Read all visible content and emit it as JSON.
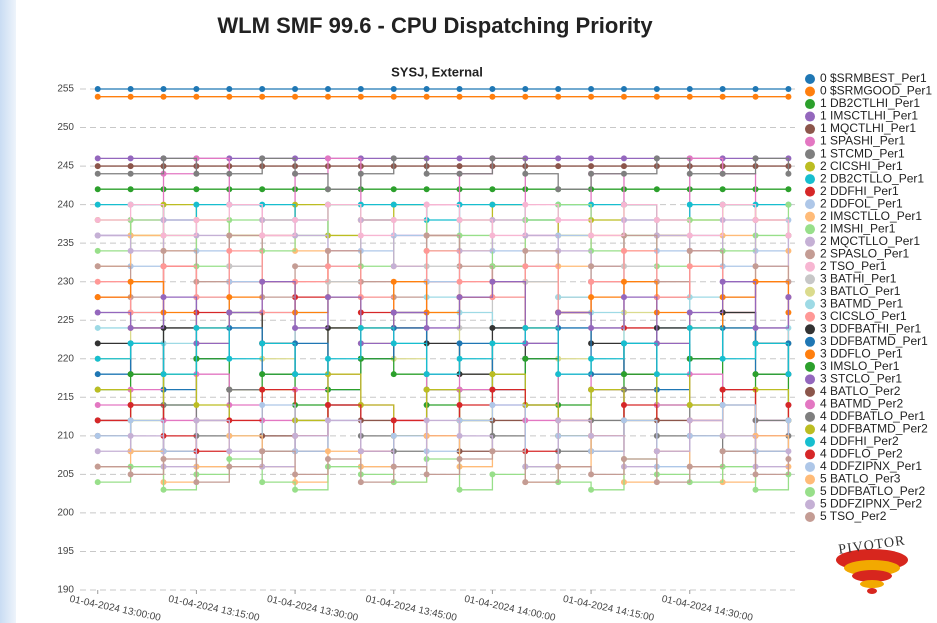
{
  "chart_data": {
    "type": "line",
    "step": true,
    "markers": true,
    "grid": true,
    "legend": "right",
    "title": "WLM SMF 99.6 - CPU Dispatching Priority",
    "subtitle": "SYSJ, External",
    "logo": "PIVOTOR",
    "x": [
      "01-04-2024 13:00:00",
      "01-04-2024 13:05:00",
      "01-04-2024 13:10:00",
      "01-04-2024 13:15:00",
      "01-04-2024 13:20:00",
      "01-04-2024 13:25:00",
      "01-04-2024 13:30:00",
      "01-04-2024 13:35:00",
      "01-04-2024 13:40:00",
      "01-04-2024 13:45:00",
      "01-04-2024 13:50:00",
      "01-04-2024 13:55:00",
      "01-04-2024 14:00:00",
      "01-04-2024 14:05:00",
      "01-04-2024 14:10:00",
      "01-04-2024 14:15:00",
      "01-04-2024 14:20:00",
      "01-04-2024 14:25:00",
      "01-04-2024 14:30:00",
      "01-04-2024 14:35:00",
      "01-04-2024 14:40:00",
      "01-04-2024 14:45:00"
    ],
    "xlim": [
      "01-04-2024 12:57:00",
      "01-04-2024 14:46:00"
    ],
    "xticks": [
      "01-04-2024 13:00:00",
      "01-04-2024 13:15:00",
      "01-04-2024 13:30:00",
      "01-04-2024 13:45:00",
      "01-04-2024 14:00:00",
      "01-04-2024 14:15:00",
      "01-04-2024 14:30:00"
    ],
    "ylim": [
      190,
      255
    ],
    "yticks": [
      190,
      195,
      200,
      205,
      210,
      215,
      220,
      225,
      230,
      235,
      240,
      245,
      250,
      255
    ],
    "series": [
      {
        "name": "0 $SRMBEST_Per1",
        "color": "#1f77b4",
        "values": [
          255,
          255,
          255,
          255,
          255,
          255,
          255,
          255,
          255,
          255,
          255,
          255,
          255,
          255,
          255,
          255,
          255,
          255,
          255,
          255,
          255,
          255
        ]
      },
      {
        "name": "0 $SRMGOOD_Per1",
        "color": "#ff7f0e",
        "values": [
          254,
          254,
          254,
          254,
          254,
          254,
          254,
          254,
          254,
          254,
          254,
          254,
          254,
          254,
          254,
          254,
          254,
          254,
          254,
          254,
          254,
          254
        ]
      },
      {
        "name": "1 DB2CTLHI_Per1",
        "color": "#2ca02c",
        "values": [
          242,
          242,
          242,
          242,
          242,
          242,
          242,
          242,
          242,
          242,
          242,
          242,
          242,
          242,
          242,
          242,
          242,
          242,
          242,
          242,
          242,
          242
        ]
      },
      {
        "name": "1 IMSCTLHI_Per1",
        "color": "#9467bd",
        "values": [
          246,
          246,
          246,
          246,
          246,
          246,
          246,
          246,
          246,
          246,
          246,
          246,
          246,
          246,
          246,
          246,
          246,
          246,
          246,
          246,
          246,
          246
        ]
      },
      {
        "name": "1 MQCTLHI_Per1",
        "color": "#8c564b",
        "values": [
          245,
          245,
          245,
          245,
          245,
          245,
          245,
          245,
          245,
          245,
          245,
          245,
          245,
          245,
          245,
          245,
          245,
          245,
          245,
          245,
          245,
          245
        ]
      },
      {
        "name": "1 SPASHI_Per1",
        "color": "#e377c2",
        "values": [
          236,
          238,
          244,
          246,
          240,
          236,
          244,
          246,
          238,
          236,
          240,
          244,
          246,
          236,
          238,
          244,
          240,
          236,
          246,
          244,
          238,
          236
        ]
      },
      {
        "name": "1 STCMD_Per1",
        "color": "#7f7f7f",
        "values": [
          244,
          244,
          246,
          244,
          244,
          246,
          244,
          242,
          244,
          246,
          244,
          244,
          246,
          244,
          242,
          244,
          244,
          246,
          244,
          244,
          246,
          244
        ]
      },
      {
        "name": "2 CICSHI_Per1",
        "color": "#bcbd22",
        "values": [
          238,
          236,
          240,
          238,
          236,
          238,
          240,
          236,
          238,
          240,
          236,
          238,
          240,
          238,
          236,
          238,
          240,
          236,
          238,
          240,
          238,
          236
        ]
      },
      {
        "name": "2 DB2CTLLO_Per1",
        "color": "#17becf",
        "values": [
          240,
          240,
          238,
          240,
          240,
          240,
          238,
          240,
          240,
          240,
          238,
          240,
          240,
          238,
          240,
          240,
          240,
          238,
          240,
          240,
          240,
          240
        ]
      },
      {
        "name": "2 DDFHI_Per1",
        "color": "#d62728",
        "values": [
          228,
          224,
          232,
          226,
          230,
          222,
          228,
          234,
          226,
          224,
          230,
          228,
          232,
          222,
          226,
          230,
          224,
          228,
          234,
          226,
          222,
          228
        ]
      },
      {
        "name": "2 DDFOL_Per1",
        "color": "#aec7e8",
        "values": [
          236,
          232,
          238,
          234,
          230,
          236,
          238,
          232,
          234,
          236,
          230,
          238,
          234,
          232,
          236,
          230,
          238,
          234,
          236,
          232,
          234,
          238
        ]
      },
      {
        "name": "2 IMSCTLLO_Per1",
        "color": "#ffbb78",
        "values": [
          232,
          236,
          234,
          238,
          232,
          236,
          234,
          230,
          238,
          232,
          236,
          234,
          238,
          230,
          232,
          236,
          234,
          238,
          232,
          236,
          230,
          234
        ]
      },
      {
        "name": "2 IMSHI_Per1",
        "color": "#98df8a",
        "values": [
          234,
          238,
          236,
          232,
          238,
          234,
          236,
          240,
          232,
          238,
          234,
          236,
          232,
          238,
          240,
          234,
          236,
          232,
          238,
          234,
          236,
          240
        ]
      },
      {
        "name": "2 MQCTLLO_Per1",
        "color": "#c5b0d5",
        "values": [
          236,
          234,
          238,
          236,
          232,
          238,
          236,
          234,
          238,
          232,
          236,
          234,
          238,
          236,
          234,
          232,
          238,
          236,
          234,
          238,
          232,
          236
        ]
      },
      {
        "name": "2 SPASLO_Per1",
        "color": "#c49c94",
        "values": [
          232,
          228,
          234,
          230,
          236,
          228,
          232,
          234,
          230,
          228,
          236,
          232,
          230,
          234,
          228,
          232,
          236,
          230,
          234,
          228,
          232,
          230
        ]
      },
      {
        "name": "2 TSO_Per1",
        "color": "#f7b6d2",
        "values": [
          238,
          240,
          236,
          238,
          240,
          236,
          238,
          240,
          236,
          238,
          240,
          238,
          236,
          240,
          238,
          236,
          240,
          238,
          236,
          240,
          238,
          236
        ]
      },
      {
        "name": "3 BATHI_Per1",
        "color": "#c7c7c7",
        "values": [
          226,
          230,
          224,
          228,
          232,
          226,
          224,
          230,
          228,
          226,
          232,
          224,
          228,
          230,
          226,
          224,
          232,
          228,
          226,
          230,
          224,
          228
        ]
      },
      {
        "name": "3 BATLO_Per1",
        "color": "#dbdb8d",
        "values": [
          220,
          224,
          218,
          222,
          226,
          220,
          218,
          224,
          222,
          220,
          226,
          218,
          222,
          224,
          220,
          218,
          226,
          222,
          220,
          224,
          218,
          222
        ]
      },
      {
        "name": "3 BATMD_Per1",
        "color": "#9edae5",
        "values": [
          224,
          226,
          222,
          228,
          224,
          222,
          226,
          228,
          224,
          222,
          228,
          226,
          224,
          222,
          228,
          226,
          222,
          224,
          228,
          226,
          222,
          224
        ]
      },
      {
        "name": "3 CICSLO_Per1",
        "color": "#ff9896",
        "values": [
          230,
          226,
          232,
          228,
          234,
          226,
          230,
          232,
          228,
          226,
          234,
          230,
          228,
          232,
          226,
          230,
          234,
          228,
          232,
          226,
          230,
          228
        ]
      },
      {
        "name": "3 DDFBATHI_Per1",
        "color": "#333333",
        "values": [
          222,
          218,
          224,
          220,
          226,
          222,
          218,
          224,
          220,
          226,
          222,
          218,
          224,
          220,
          226,
          222,
          218,
          224,
          220,
          226,
          222,
          218
        ]
      },
      {
        "name": "3 DDFBATMD_Per1",
        "color": "#1f77b4",
        "values": [
          218,
          222,
          216,
          220,
          224,
          218,
          222,
          216,
          220,
          224,
          218,
          222,
          216,
          220,
          224,
          218,
          222,
          216,
          220,
          224,
          218,
          222
        ]
      },
      {
        "name": "3 DDFLO_Per1",
        "color": "#ff7f0e",
        "values": [
          228,
          230,
          226,
          224,
          228,
          230,
          226,
          228,
          224,
          230,
          226,
          228,
          230,
          224,
          226,
          228,
          230,
          226,
          224,
          228,
          230,
          226
        ]
      },
      {
        "name": "3 IMSLO_Per1",
        "color": "#2ca02c",
        "values": [
          216,
          218,
          214,
          220,
          216,
          218,
          214,
          216,
          220,
          218,
          214,
          216,
          218,
          220,
          214,
          216,
          218,
          214,
          220,
          216,
          218,
          214
        ]
      },
      {
        "name": "3 STCLO_Per1",
        "color": "#9467bd",
        "values": [
          226,
          224,
          228,
          222,
          226,
          230,
          224,
          228,
          222,
          226,
          224,
          228,
          230,
          222,
          226,
          224,
          228,
          222,
          226,
          230,
          224,
          228
        ]
      },
      {
        "name": "4 BATLO_Per2",
        "color": "#8c564b",
        "values": [
          210,
          214,
          208,
          212,
          216,
          210,
          208,
          214,
          212,
          210,
          216,
          208,
          212,
          214,
          210,
          208,
          216,
          212,
          210,
          214,
          208,
          212
        ]
      },
      {
        "name": "4 BATMD_Per2",
        "color": "#e377c2",
        "values": [
          214,
          216,
          212,
          218,
          214,
          212,
          216,
          218,
          214,
          212,
          218,
          216,
          214,
          212,
          218,
          216,
          212,
          214,
          218,
          216,
          212,
          214
        ]
      },
      {
        "name": "4 DDFBATLO_Per1",
        "color": "#7f7f7f",
        "values": [
          212,
          208,
          214,
          210,
          216,
          208,
          212,
          214,
          210,
          208,
          216,
          212,
          210,
          214,
          208,
          212,
          216,
          210,
          214,
          208,
          212,
          210
        ]
      },
      {
        "name": "4 DDFBATMD_Per2",
        "color": "#bcbd22",
        "values": [
          216,
          212,
          218,
          214,
          210,
          216,
          212,
          218,
          214,
          210,
          216,
          212,
          218,
          214,
          210,
          216,
          212,
          218,
          214,
          210,
          216,
          212
        ]
      },
      {
        "name": "4 DDFHI_Per2",
        "color": "#17becf",
        "values": [
          220,
          222,
          218,
          224,
          220,
          222,
          218,
          220,
          224,
          222,
          218,
          220,
          222,
          224,
          218,
          220,
          222,
          218,
          224,
          220,
          222,
          218
        ]
      },
      {
        "name": "4 DDFLO_Per2",
        "color": "#d62728",
        "values": [
          212,
          214,
          210,
          208,
          212,
          216,
          210,
          214,
          208,
          212,
          210,
          214,
          216,
          208,
          212,
          210,
          214,
          208,
          212,
          216,
          210,
          214
        ]
      },
      {
        "name": "4 DDFZIPNX_Per1",
        "color": "#aec7e8",
        "values": [
          210,
          212,
          208,
          206,
          210,
          214,
          208,
          212,
          206,
          210,
          208,
          212,
          214,
          206,
          210,
          208,
          212,
          206,
          210,
          214,
          208,
          212
        ]
      },
      {
        "name": "5 BATLO_Per3",
        "color": "#ffbb78",
        "values": [
          206,
          208,
          204,
          206,
          210,
          206,
          204,
          208,
          206,
          204,
          210,
          206,
          208,
          204,
          206,
          210,
          204,
          208,
          206,
          204,
          210,
          206
        ]
      },
      {
        "name": "5 DDFBATLO_Per2",
        "color": "#98df8a",
        "values": [
          204,
          206,
          203,
          205,
          207,
          204,
          203,
          206,
          205,
          204,
          207,
          203,
          205,
          206,
          204,
          203,
          207,
          205,
          204,
          206,
          203,
          205
        ]
      },
      {
        "name": "5 DDFZIPNX_Per2",
        "color": "#c5b0d5",
        "values": [
          208,
          210,
          206,
          212,
          208,
          206,
          210,
          212,
          208,
          206,
          212,
          210,
          208,
          206,
          212,
          210,
          206,
          208,
          212,
          210,
          206,
          208
        ]
      },
      {
        "name": "5 TSO_Per2",
        "color": "#c49c94",
        "values": [
          206,
          205,
          207,
          204,
          206,
          208,
          205,
          207,
          204,
          206,
          205,
          207,
          208,
          204,
          206,
          205,
          207,
          204,
          206,
          208,
          205,
          207
        ]
      }
    ]
  }
}
